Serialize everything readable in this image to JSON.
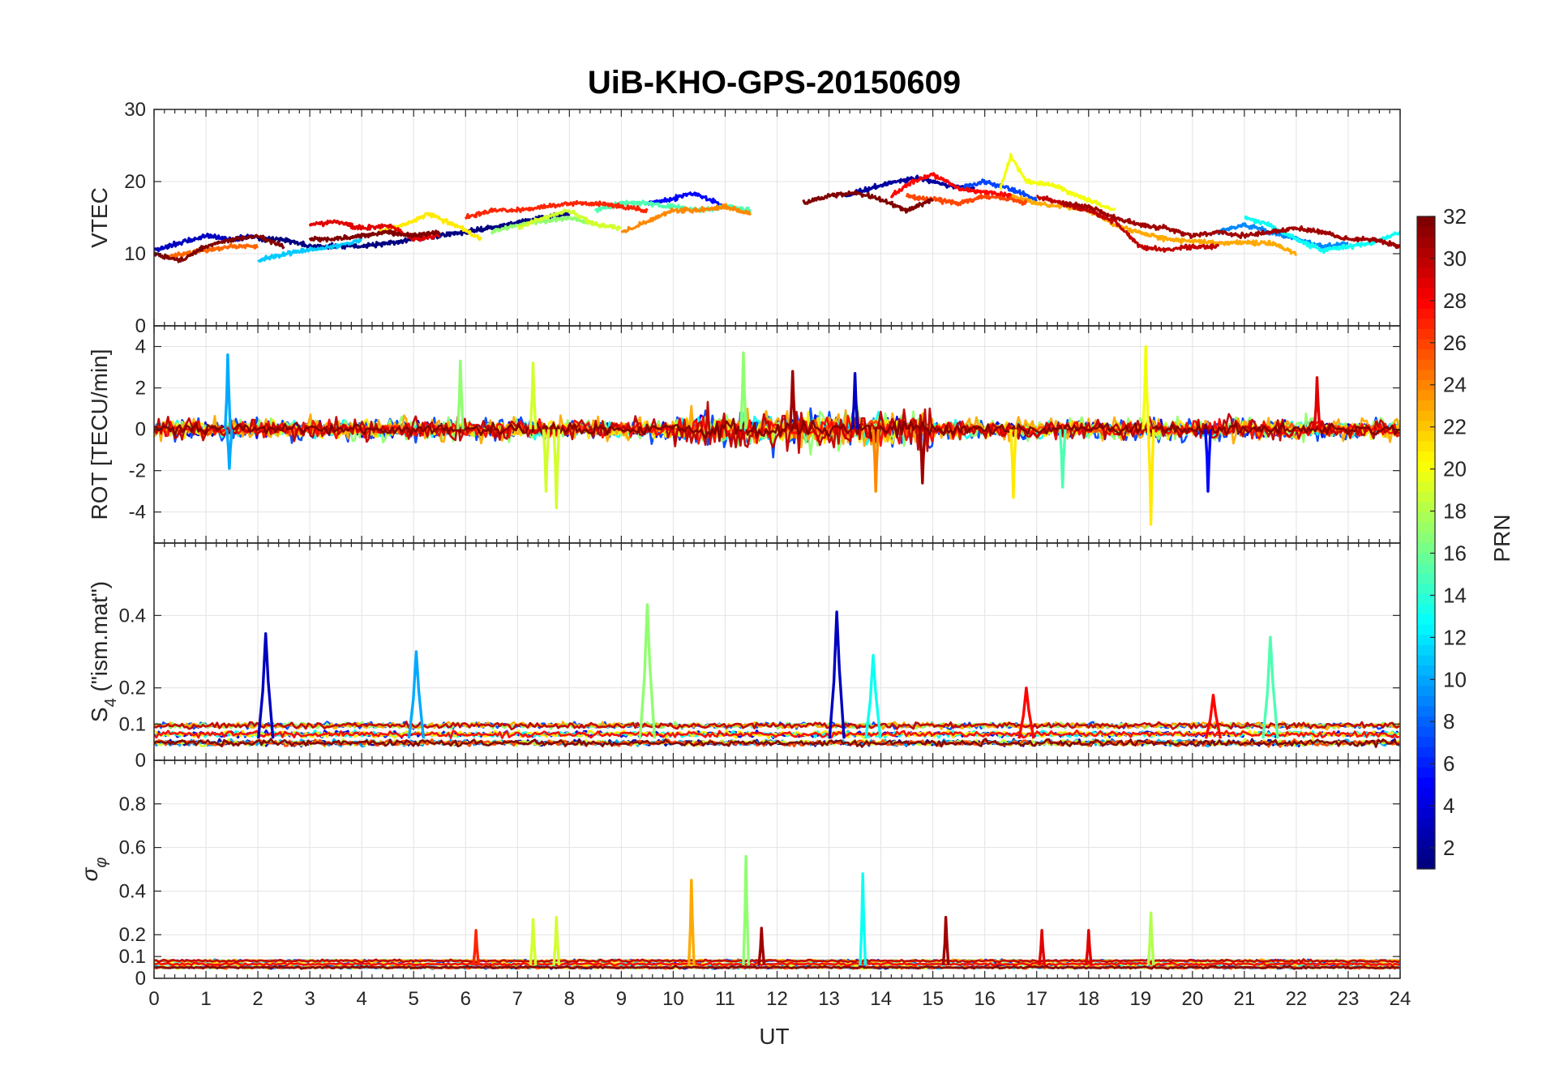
{
  "chart_data": {
    "type": "line",
    "title": "UiB-KHO-GPS-20150609",
    "xlabel": "UT",
    "xlim": [
      0,
      24
    ],
    "xticks": [
      "0",
      "1",
      "2",
      "3",
      "4",
      "5",
      "6",
      "7",
      "8",
      "9",
      "10",
      "11",
      "12",
      "13",
      "14",
      "15",
      "16",
      "17",
      "18",
      "19",
      "20",
      "21",
      "22",
      "23",
      "24"
    ],
    "grid": true,
    "colormap": "jet",
    "colorbar": {
      "label": "PRN",
      "range": [
        1,
        32
      ],
      "ticks": [
        "2",
        "4",
        "6",
        "8",
        "10",
        "12",
        "14",
        "16",
        "18",
        "20",
        "22",
        "24",
        "26",
        "28",
        "30",
        "32"
      ],
      "placement": "right"
    },
    "panels": [
      {
        "ylabel": "VTEC",
        "ylim": [
          0,
          30
        ],
        "yticks": [
          "0",
          "10",
          "20",
          "30"
        ],
        "series": [
          {
            "prn": 1,
            "points": [
              [
                2.0,
                12
              ],
              [
                2.5,
                12
              ],
              [
                3.0,
                11
              ],
              [
                4.0,
                11
              ],
              [
                5.0,
                12
              ],
              [
                6.0,
                13
              ],
              [
                6.8,
                14
              ],
              [
                7.5,
                15
              ],
              [
                8.0,
                15.5
              ]
            ]
          },
          {
            "prn": 2,
            "points": [
              [
                13.3,
                18
              ],
              [
                14.0,
                19.5
              ],
              [
                14.7,
                20.5
              ],
              [
                15.3,
                19.5
              ],
              [
                15.8,
                19
              ]
            ]
          },
          {
            "prn": 3,
            "points": [
              [
                0.0,
                10.5
              ],
              [
                0.5,
                11.5
              ],
              [
                1.0,
                12.5
              ],
              [
                1.5,
                12
              ],
              [
                2.0,
                12.5
              ]
            ]
          },
          {
            "prn": 5,
            "points": [
              [
                9.5,
                17
              ],
              [
                10.0,
                17.5
              ],
              [
                10.3,
                18.5
              ],
              [
                10.7,
                17.5
              ],
              [
                11.0,
                16.5
              ]
            ]
          },
          {
            "prn": 7,
            "points": [
              [
                15.5,
                19
              ],
              [
                16.0,
                20
              ],
              [
                16.5,
                19
              ],
              [
                17.0,
                17.5
              ]
            ]
          },
          {
            "prn": 9,
            "points": [
              [
                20.5,
                13
              ],
              [
                21.0,
                14
              ],
              [
                21.5,
                13
              ],
              [
                22.0,
                12
              ],
              [
                22.5,
                11
              ],
              [
                23.0,
                11.5
              ]
            ]
          },
          {
            "prn": 11,
            "points": [
              [
                2.0,
                9
              ],
              [
                2.5,
                10
              ],
              [
                3.0,
                10.5
              ],
              [
                3.5,
                11
              ],
              [
                4.0,
                12
              ]
            ]
          },
          {
            "prn": 13,
            "points": [
              [
                21.0,
                15
              ],
              [
                21.5,
                14
              ],
              [
                22.0,
                12
              ],
              [
                22.5,
                10.5
              ],
              [
                23.0,
                11
              ],
              [
                23.5,
                11.5
              ],
              [
                24.0,
                13
              ]
            ]
          },
          {
            "prn": 15,
            "points": [
              [
                8.5,
                16
              ],
              [
                9.0,
                17
              ],
              [
                9.5,
                17
              ],
              [
                10.0,
                16.5
              ],
              [
                10.5,
                16
              ],
              [
                11.0,
                16.5
              ],
              [
                11.5,
                16
              ]
            ]
          },
          {
            "prn": 17,
            "points": [
              [
                6.5,
                13
              ],
              [
                7.0,
                14
              ],
              [
                7.5,
                14.5
              ],
              [
                8.0,
                15
              ],
              [
                8.5,
                14
              ]
            ]
          },
          {
            "prn": 19,
            "points": [
              [
                7.0,
                13.5
              ],
              [
                7.5,
                15
              ],
              [
                8.0,
                16
              ],
              [
                8.5,
                14
              ],
              [
                9.0,
                13.5
              ]
            ]
          },
          {
            "prn": 20,
            "points": [
              [
                16.3,
                19
              ],
              [
                16.5,
                23.5
              ],
              [
                16.8,
                20
              ],
              [
                17.3,
                19.5
              ],
              [
                17.8,
                18
              ],
              [
                18.5,
                16
              ]
            ]
          },
          {
            "prn": 21,
            "points": [
              [
                4.3,
                13
              ],
              [
                4.8,
                14
              ],
              [
                5.3,
                15.5
              ],
              [
                5.8,
                14
              ],
              [
                6.3,
                12
              ]
            ]
          },
          {
            "prn": 23,
            "points": [
              [
                16.5,
                18
              ],
              [
                17.0,
                17
              ],
              [
                17.5,
                16.5
              ],
              [
                18.0,
                16
              ],
              [
                18.5,
                14
              ],
              [
                19.5,
                12
              ],
              [
                20.5,
                11.5
              ],
              [
                21.5,
                11.5
              ],
              [
                22.0,
                10
              ]
            ]
          },
          {
            "prn": 24,
            "points": [
              [
                9.0,
                13
              ],
              [
                9.5,
                14.5
              ],
              [
                10.0,
                16
              ],
              [
                10.5,
                16
              ],
              [
                11.0,
                16.5
              ],
              [
                11.5,
                15.5
              ]
            ]
          },
          {
            "prn": 25,
            "points": [
              [
                0.2,
                9.5
              ],
              [
                0.6,
                10
              ],
              [
                1.0,
                10.5
              ],
              [
                1.5,
                11
              ],
              [
                2.0,
                11
              ]
            ]
          },
          {
            "prn": 26,
            "points": [
              [
                14.5,
                18
              ],
              [
                15.0,
                17.5
              ],
              [
                15.5,
                17
              ],
              [
                16.0,
                18
              ],
              [
                16.5,
                17.5
              ],
              [
                16.8,
                17
              ]
            ]
          },
          {
            "prn": 27,
            "points": [
              [
                6.0,
                15
              ],
              [
                6.5,
                16
              ],
              [
                7.0,
                16
              ],
              [
                7.5,
                16.5
              ],
              [
                8.0,
                17
              ],
              [
                8.5,
                17
              ],
              [
                9.0,
                16.5
              ],
              [
                9.5,
                16
              ]
            ]
          },
          {
            "prn": 28,
            "points": [
              [
                14.2,
                18
              ],
              [
                14.6,
                20
              ],
              [
                15.0,
                21
              ],
              [
                15.5,
                19
              ],
              [
                16.0,
                18.5
              ],
              [
                16.5,
                18
              ]
            ]
          },
          {
            "prn": 29,
            "points": [
              [
                3.0,
                14
              ],
              [
                3.5,
                14.5
              ],
              [
                4.0,
                13.5
              ],
              [
                4.5,
                14
              ],
              [
                5.0,
                12
              ],
              [
                5.5,
                12.5
              ]
            ]
          },
          {
            "prn": 30,
            "points": [
              [
                17.0,
                18
              ],
              [
                17.5,
                17
              ],
              [
                18.0,
                16
              ],
              [
                18.5,
                14.5
              ],
              [
                19.0,
                11
              ],
              [
                19.5,
                10.5
              ],
              [
                20.0,
                11
              ],
              [
                20.5,
                11
              ]
            ]
          },
          {
            "prn": 31,
            "points": [
              [
                17.5,
                17
              ],
              [
                18.0,
                16.5
              ],
              [
                18.5,
                15
              ],
              [
                19.0,
                14
              ],
              [
                19.5,
                13.5
              ],
              [
                20.0,
                12.5
              ],
              [
                20.5,
                13
              ],
              [
                21.0,
                12.5
              ],
              [
                21.5,
                13
              ],
              [
                22.0,
                13.5
              ],
              [
                22.5,
                13
              ],
              [
                23.0,
                12
              ],
              [
                23.5,
                12
              ],
              [
                24.0,
                11
              ]
            ]
          },
          {
            "prn": 32,
            "points": [
              [
                0.0,
                10
              ],
              [
                0.5,
                9
              ],
              [
                1.0,
                11
              ],
              [
                1.5,
                12
              ],
              [
                2.0,
                12.5
              ],
              [
                2.5,
                11
              ]
            ]
          },
          {
            "prn": 32,
            "points": [
              [
                12.5,
                17
              ],
              [
                13.0,
                18
              ],
              [
                13.5,
                18.5
              ],
              [
                14.0,
                17.5
              ],
              [
                14.5,
                16
              ],
              [
                15.0,
                17.5
              ]
            ]
          },
          {
            "prn": 32,
            "points": [
              [
                3.0,
                12
              ],
              [
                3.5,
                12
              ],
              [
                4.0,
                12.5
              ],
              [
                4.5,
                13
              ],
              [
                5.0,
                12.5
              ],
              [
                5.5,
                13
              ]
            ]
          }
        ]
      },
      {
        "ylabel": "ROT [TECU/min]",
        "ylim": [
          -5.5,
          5
        ],
        "yticks": [
          "-4",
          "-2",
          "0",
          "2",
          "4"
        ],
        "spikes": [
          {
            "prn": 10,
            "x": 1.42,
            "y": 3.6
          },
          {
            "prn": 10,
            "x": 1.45,
            "y": -1.9
          },
          {
            "prn": 17,
            "x": 5.9,
            "y": 3.3
          },
          {
            "prn": 19,
            "x": 7.3,
            "y": 3.2
          },
          {
            "prn": 19,
            "x": 7.55,
            "y": -3.0
          },
          {
            "prn": 19,
            "x": 7.75,
            "y": -3.8
          },
          {
            "prn": 17,
            "x": 11.35,
            "y": 3.7
          },
          {
            "prn": 31,
            "x": 12.3,
            "y": 2.8
          },
          {
            "prn": 3,
            "x": 13.5,
            "y": 2.7
          },
          {
            "prn": 24,
            "x": 13.9,
            "y": -3.0
          },
          {
            "prn": 31,
            "x": 14.8,
            "y": -2.6
          },
          {
            "prn": 21,
            "x": 16.55,
            "y": -3.3
          },
          {
            "prn": 15,
            "x": 17.5,
            "y": -2.8
          },
          {
            "prn": 20,
            "x": 19.1,
            "y": 4.0
          },
          {
            "prn": 21,
            "x": 19.2,
            "y": -4.6
          },
          {
            "prn": 5,
            "x": 20.3,
            "y": -3.0
          },
          {
            "prn": 29,
            "x": 22.4,
            "y": 2.5
          }
        ]
      },
      {
        "ylabel": "S_4 (\"ism.mat\")",
        "ylim": [
          0,
          0.6
        ],
        "yticks": [
          "0",
          "0.1",
          "0.2",
          "0.4"
        ],
        "spikes": [
          {
            "prn": 3,
            "x": 2.15,
            "y": 0.35
          },
          {
            "prn": 10,
            "x": 5.05,
            "y": 0.3
          },
          {
            "prn": 17,
            "x": 9.5,
            "y": 0.43
          },
          {
            "prn": 3,
            "x": 13.15,
            "y": 0.41
          },
          {
            "prn": 13,
            "x": 13.85,
            "y": 0.29
          },
          {
            "prn": 28,
            "x": 16.8,
            "y": 0.2
          },
          {
            "prn": 28,
            "x": 20.4,
            "y": 0.18
          },
          {
            "prn": 15,
            "x": 21.5,
            "y": 0.34
          }
        ]
      },
      {
        "ylabel": "σ_φ",
        "ylim": [
          0,
          1
        ],
        "yticks": [
          "0",
          "0.1",
          "0.2",
          "0.4",
          "0.6",
          "0.8"
        ],
        "spikes": [
          {
            "prn": 27,
            "x": 6.2,
            "y": 0.22
          },
          {
            "prn": 19,
            "x": 7.3,
            "y": 0.27
          },
          {
            "prn": 19,
            "x": 7.75,
            "y": 0.28
          },
          {
            "prn": 23,
            "x": 10.35,
            "y": 0.45
          },
          {
            "prn": 17,
            "x": 11.4,
            "y": 0.56
          },
          {
            "prn": 31,
            "x": 11.7,
            "y": 0.23
          },
          {
            "prn": 13,
            "x": 13.65,
            "y": 0.48
          },
          {
            "prn": 31,
            "x": 15.25,
            "y": 0.28
          },
          {
            "prn": 29,
            "x": 17.1,
            "y": 0.22
          },
          {
            "prn": 29,
            "x": 18.0,
            "y": 0.22
          },
          {
            "prn": 18,
            "x": 19.2,
            "y": 0.3
          }
        ]
      }
    ]
  }
}
